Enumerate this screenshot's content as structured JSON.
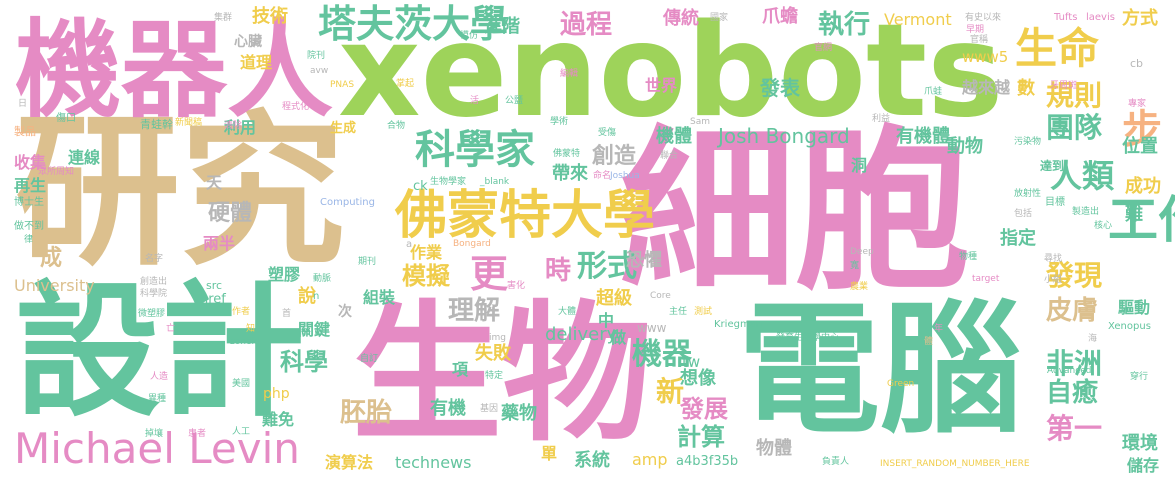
{
  "palette": {
    "pink": "#e58bc4",
    "green": "#9ed35a",
    "teal": "#63c49e",
    "tan": "#dcc08e",
    "gold": "#f0cd4c",
    "gray": "#b7b7b7",
    "blue": "#9ab6e6",
    "orange": "#f6b281",
    "sage": "#a7c891"
  },
  "words": [
    {
      "text": "細胞",
      "color": "pink"
    },
    {
      "text": "研究",
      "color": "tan"
    },
    {
      "text": "xenobots",
      "color": "green"
    },
    {
      "text": "電腦",
      "color": "teal"
    },
    {
      "text": "設計",
      "color": "teal"
    },
    {
      "text": "生物",
      "color": "pink"
    },
    {
      "text": "機器人",
      "color": "pink"
    },
    {
      "text": "Michael Levin",
      "color": "pink"
    },
    {
      "text": "佛蒙特大學",
      "color": "gold"
    },
    {
      "text": "科學家",
      "color": "teal"
    },
    {
      "text": "塔夫茨大學",
      "color": "teal"
    },
    {
      "text": "生命",
      "color": "gold"
    },
    {
      "text": "工作",
      "color": "teal"
    },
    {
      "text": "步",
      "color": "orange"
    },
    {
      "text": "規則",
      "color": "gold"
    },
    {
      "text": "團隊",
      "color": "teal"
    },
    {
      "text": "非洲",
      "color": "teal"
    },
    {
      "text": "人類",
      "color": "teal"
    },
    {
      "text": "自癒",
      "color": "teal"
    },
    {
      "text": "第一",
      "color": "pink"
    },
    {
      "text": "發現",
      "color": "gold"
    },
    {
      "text": "皮膚",
      "color": "tan"
    },
    {
      "text": "過程",
      "color": "pink"
    },
    {
      "text": "執行",
      "color": "teal"
    },
    {
      "text": "更",
      "color": "pink"
    },
    {
      "text": "時",
      "color": "pink"
    },
    {
      "text": "形式",
      "color": "teal"
    },
    {
      "text": "模擬",
      "color": "gold"
    },
    {
      "text": "理解",
      "color": "gray"
    },
    {
      "text": "機器",
      "color": "teal"
    },
    {
      "text": "科學",
      "color": "teal"
    },
    {
      "text": "胚胎",
      "color": "tan"
    },
    {
      "text": "計算",
      "color": "teal"
    },
    {
      "text": "發展",
      "color": "pink"
    },
    {
      "text": "新",
      "color": "gold"
    },
    {
      "text": "創造",
      "color": "gray"
    },
    {
      "text": "硬體",
      "color": "gray"
    },
    {
      "text": "Josh Bongard",
      "color": "teal"
    },
    {
      "text": "技術",
      "color": "gold"
    },
    {
      "text": "進階",
      "color": "teal"
    },
    {
      "text": "傳統",
      "color": "pink"
    },
    {
      "text": "爪蟾",
      "color": "pink"
    },
    {
      "text": "Vermont",
      "color": "gold"
    },
    {
      "text": "www5",
      "color": "gold"
    },
    {
      "text": "數",
      "color": "gold"
    },
    {
      "text": "越來越",
      "color": "gray"
    },
    {
      "text": "方式",
      "color": "gold"
    },
    {
      "text": "世界",
      "color": "pink"
    },
    {
      "text": "發表",
      "color": "teal"
    },
    {
      "text": "機體",
      "color": "teal"
    },
    {
      "text": "有機體",
      "color": "teal"
    },
    {
      "text": "動物",
      "color": "teal"
    },
    {
      "text": "帶來",
      "color": "teal"
    },
    {
      "text": "位置",
      "color": "teal"
    },
    {
      "text": "達到",
      "color": "teal"
    },
    {
      "text": "成功",
      "color": "gold"
    },
    {
      "text": "指定",
      "color": "teal"
    },
    {
      "text": "難",
      "color": "teal"
    },
    {
      "text": "環境",
      "color": "teal"
    },
    {
      "text": "儲存",
      "color": "teal"
    },
    {
      "text": "恐懼",
      "color": "gray"
    },
    {
      "text": "超級",
      "color": "gold"
    },
    {
      "text": "中",
      "color": "teal"
    },
    {
      "text": "delivery",
      "color": "teal"
    },
    {
      "text": "作業",
      "color": "gold"
    },
    {
      "text": "組裝",
      "color": "teal"
    },
    {
      "text": "做",
      "color": "teal"
    },
    {
      "text": "失敗",
      "color": "gold"
    },
    {
      "text": "想像",
      "color": "teal"
    },
    {
      "text": "藥物",
      "color": "teal"
    },
    {
      "text": "物體",
      "color": "gray"
    },
    {
      "text": "系統",
      "color": "teal"
    },
    {
      "text": "technews",
      "color": "teal"
    },
    {
      "text": "演算法",
      "color": "gold"
    },
    {
      "text": "有機",
      "color": "teal"
    },
    {
      "text": "tw",
      "color": "teal"
    },
    {
      "text": "amp",
      "color": "gold"
    },
    {
      "text": "單",
      "color": "gold"
    },
    {
      "text": "關鍵",
      "color": "teal"
    },
    {
      "text": "難免",
      "color": "teal"
    },
    {
      "text": "塑膠",
      "color": "teal"
    },
    {
      "text": "說",
      "color": "gold"
    },
    {
      "text": "php",
      "color": "gold"
    },
    {
      "text": "項",
      "color": "teal"
    },
    {
      "text": "收集",
      "color": "pink"
    },
    {
      "text": "連線",
      "color": "teal"
    },
    {
      "text": "再生",
      "color": "teal"
    },
    {
      "text": "兩半",
      "color": "pink"
    },
    {
      "text": "天",
      "color": "gray"
    },
    {
      "text": "成",
      "color": "tan"
    },
    {
      "text": "University",
      "color": "tan"
    },
    {
      "text": "利用",
      "color": "teal"
    },
    {
      "text": "道理",
      "color": "gold"
    },
    {
      "text": "心臟",
      "color": "gray"
    },
    {
      "text": "www",
      "color": "gray"
    },
    {
      "text": "a4b3f35b",
      "color": "teal"
    },
    {
      "text": "洞",
      "color": "teal"
    },
    {
      "text": "Xenopus",
      "color": "teal"
    },
    {
      "text": "驅動",
      "color": "teal"
    },
    {
      "text": "ck",
      "color": "teal"
    },
    {
      "text": "次",
      "color": "gray"
    },
    {
      "text": "生成",
      "color": "gold"
    },
    {
      "text": "國家",
      "color": "gray"
    },
    {
      "text": "有史以來",
      "color": "gray"
    },
    {
      "text": "Tufts",
      "color": "pink"
    },
    {
      "text": "laevis",
      "color": "pink"
    },
    {
      "text": "模仿",
      "color": "teal"
    },
    {
      "text": "早期",
      "color": "pink"
    },
    {
      "text": "官網",
      "color": "pink"
    },
    {
      "text": "官稱",
      "color": "gray"
    },
    {
      "text": "集群",
      "color": "gray"
    },
    {
      "text": "院刊",
      "color": "teal"
    },
    {
      "text": "avw",
      "color": "gray"
    },
    {
      "text": "PNAS",
      "color": "gold"
    },
    {
      "text": "傷口",
      "color": "teal"
    },
    {
      "text": "青蛙幹",
      "color": "teal"
    },
    {
      "text": "新聞稿",
      "color": "gold"
    },
    {
      "text": "清除",
      "color": "pink"
    },
    {
      "text": "程式化",
      "color": "pink"
    },
    {
      "text": "製品",
      "color": "orange"
    },
    {
      "text": "眾所周知",
      "color": "pink"
    },
    {
      "text": "博士生",
      "color": "teal"
    },
    {
      "text": "做不到",
      "color": "teal"
    },
    {
      "text": "名字",
      "color": "gray"
    },
    {
      "text": "科學院",
      "color": "gray"
    },
    {
      "text": "創造出",
      "color": "gray"
    },
    {
      "text": "微塑膠",
      "color": "teal"
    },
    {
      "text": "作者",
      "color": "gold"
    },
    {
      "text": "人造",
      "color": "pink"
    },
    {
      "text": "異種",
      "color": "teal"
    },
    {
      "text": "美國",
      "color": "teal"
    },
    {
      "text": "人工",
      "color": "teal"
    },
    {
      "text": "患者",
      "color": "pink"
    },
    {
      "text": "掉壤",
      "color": "teal"
    },
    {
      "text": "Computing",
      "color": "blue"
    },
    {
      "text": "_blank",
      "color": "teal"
    },
    {
      "text": "Joshua",
      "color": "blue"
    },
    {
      "text": "生物學家",
      "color": "teal"
    },
    {
      "text": "src",
      "color": "teal"
    },
    {
      "text": "href",
      "color": "teal"
    },
    {
      "text": "zoneid",
      "color": "teal"
    },
    {
      "text": "img",
      "color": "gray"
    },
    {
      "text": "Bongard",
      "color": "orange"
    },
    {
      "text": "Core",
      "color": "gray"
    },
    {
      "text": "Kriegman",
      "color": "teal"
    },
    {
      "text": "Deep",
      "color": "gray"
    },
    {
      "text": "target",
      "color": "pink"
    },
    {
      "text": "Green",
      "color": "gold"
    },
    {
      "text": "Advanced",
      "color": "teal"
    },
    {
      "text": "Sam",
      "color": "gray"
    },
    {
      "text": "INSERT_RANDOM_NUMBER_HERE",
      "color": "gold"
    },
    {
      "text": "發育生物學中心",
      "color": "teal"
    },
    {
      "text": "負責人",
      "color": "teal"
    },
    {
      "text": "污染物",
      "color": "teal"
    },
    {
      "text": "放射性",
      "color": "teal"
    },
    {
      "text": "包括",
      "color": "gray"
    },
    {
      "text": "目標",
      "color": "teal"
    },
    {
      "text": "製造出",
      "color": "teal"
    },
    {
      "text": "核心",
      "color": "teal"
    },
    {
      "text": "牙周斑",
      "color": "pink"
    },
    {
      "text": "專家",
      "color": "pink"
    },
    {
      "text": "爪蛙",
      "color": "teal"
    },
    {
      "text": "利益",
      "color": "gray"
    },
    {
      "text": "公鹽",
      "color": "teal"
    },
    {
      "text": "學術",
      "color": "teal"
    },
    {
      "text": "受傷",
      "color": "teal"
    },
    {
      "text": "佛蒙特",
      "color": "teal"
    },
    {
      "text": "聯合",
      "color": "gray"
    },
    {
      "text": "命名",
      "color": "pink"
    },
    {
      "text": "害化",
      "color": "pink"
    },
    {
      "text": "測試",
      "color": "gold"
    },
    {
      "text": "大體",
      "color": "teal"
    },
    {
      "text": "主任",
      "color": "teal"
    },
    {
      "text": "編輯",
      "color": "pink"
    },
    {
      "text": "小組",
      "color": "gray"
    },
    {
      "text": "農業",
      "color": "gold"
    },
    {
      "text": "穿行",
      "color": "teal"
    },
    {
      "text": "基因",
      "color": "gray"
    },
    {
      "text": "特定",
      "color": "teal"
    },
    {
      "text": "自訂",
      "color": "teal"
    },
    {
      "text": "期刊",
      "color": "teal"
    },
    {
      "text": "動脈",
      "color": "teal"
    },
    {
      "text": "首",
      "color": "gray"
    },
    {
      "text": "物種",
      "color": "teal"
    },
    {
      "text": "尋找",
      "color": "gray"
    },
    {
      "text": "寬",
      "color": "teal"
    },
    {
      "text": "掌起",
      "color": "gold"
    },
    {
      "text": "合物",
      "color": "teal"
    },
    {
      "text": "活",
      "color": "pink"
    },
    {
      "text": "日",
      "color": "gray"
    },
    {
      "text": "海",
      "color": "gray"
    },
    {
      "text": "cb",
      "color": "gray"
    },
    {
      "text": "a",
      "color": "gray"
    },
    {
      "text": "n",
      "color": "teal"
    },
    {
      "text": "年",
      "color": "pink"
    },
    {
      "text": "體",
      "color": "tan"
    },
    {
      "text": "知",
      "color": "gold"
    },
    {
      "text": "律",
      "color": "teal"
    },
    {
      "text": "亡",
      "color": "pink"
    }
  ]
}
